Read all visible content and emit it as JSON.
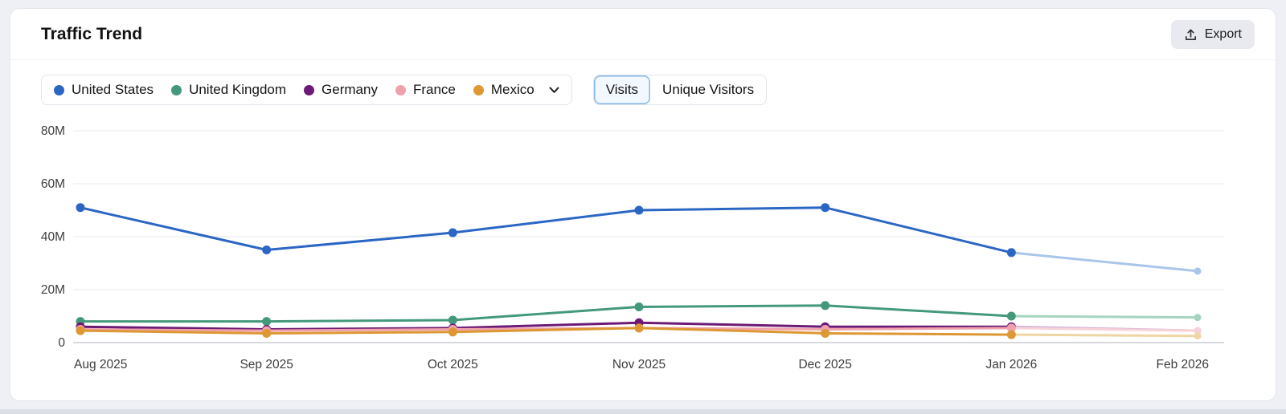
{
  "header": {
    "title": "Traffic Trend",
    "export_label": "Export"
  },
  "toggles": [
    {
      "label": "Visits",
      "active": true
    },
    {
      "label": "Unique Visitors",
      "active": false
    }
  ],
  "chart_data": {
    "type": "line",
    "title": "Traffic Trend",
    "metric": "Visits",
    "x": [
      "Aug 2025",
      "Sep 2025",
      "Oct 2025",
      "Nov 2025",
      "Dec 2025",
      "Jan 2026",
      "Feb 2026"
    ],
    "unit": "millions of visits",
    "ylim": [
      0,
      80
    ],
    "yticks": [
      {
        "label": "80M",
        "value": 80
      },
      {
        "label": "60M",
        "value": 60
      },
      {
        "label": "40M",
        "value": 40
      },
      {
        "label": "20M",
        "value": 20
      },
      {
        "label": "0",
        "value": 0
      }
    ],
    "grid": true,
    "legend_position": "top",
    "last_point_forecast": true,
    "series": [
      {
        "name": "United States",
        "color": "#2c66c4",
        "faded_color": "#a9c6ea",
        "values": [
          51,
          35,
          41.5,
          50,
          51,
          34,
          27
        ]
      },
      {
        "name": "United Kingdom",
        "color": "#44997b",
        "faded_color": "#a5d4c0",
        "values": [
          8,
          8,
          8.5,
          13.5,
          14,
          10,
          9.5
        ]
      },
      {
        "name": "Germany",
        "color": "#6d1a76",
        "faded_color": "#d0aed6",
        "values": [
          6,
          5,
          5.5,
          7.5,
          6,
          6,
          4.5
        ]
      },
      {
        "name": "France",
        "color": "#efa2ac",
        "faded_color": "#f6d2d8",
        "values": [
          5,
          4.5,
          5,
          5.5,
          5,
          5.5,
          4.5
        ]
      },
      {
        "name": "Mexico",
        "color": "#dd9733",
        "faded_color": "#eed5a4",
        "values": [
          4.5,
          3.5,
          4,
          5.5,
          3.5,
          3,
          2.5
        ]
      }
    ]
  }
}
